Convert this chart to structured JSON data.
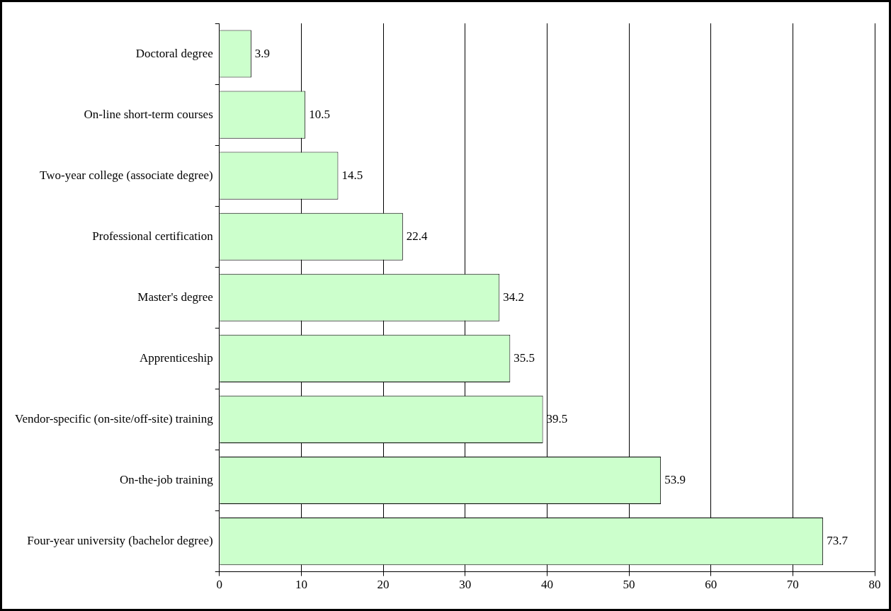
{
  "chart_data": {
    "type": "bar",
    "orientation": "horizontal",
    "categories": [
      "Doctoral degree",
      "On-line short-term courses",
      "Two-year college (associate degree)",
      "Professional certification",
      "Master's degree",
      "Apprenticeship",
      "Vendor-specific (on-site/off-site) training",
      "On-the-job training",
      "Four-year university (bachelor degree)"
    ],
    "values": [
      3.9,
      10.5,
      14.5,
      22.4,
      34.2,
      35.5,
      39.5,
      53.9,
      73.7
    ],
    "color": "#ccffcc",
    "xlim": [
      0,
      80
    ],
    "xticks": [
      0,
      10,
      20,
      30,
      40,
      50,
      60,
      70,
      80
    ],
    "grid": "x",
    "data_labels": true,
    "legend": false
  }
}
